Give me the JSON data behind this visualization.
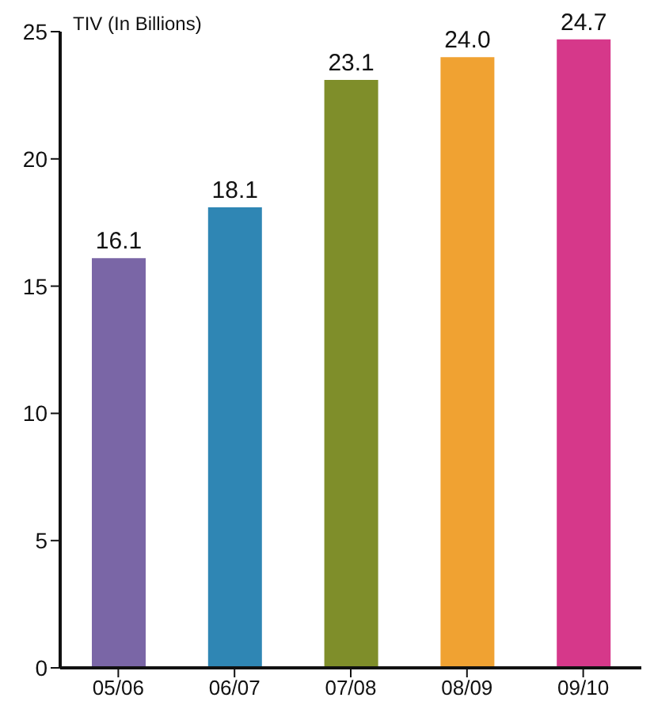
{
  "chart_data": {
    "type": "bar",
    "ylabel": "TIV (In Billions)",
    "categories": [
      "05/06",
      "06/07",
      "07/08",
      "08/09",
      "09/10"
    ],
    "values": [
      16.1,
      18.1,
      23.1,
      24.0,
      24.7
    ],
    "value_labels": [
      "16.1",
      "18.1",
      "23.1",
      "24.0",
      "24.7"
    ],
    "colors": [
      "#7a66a6",
      "#2f86b4",
      "#7f8e2a",
      "#f0a232",
      "#d6388a"
    ],
    "ylim": [
      0,
      25
    ],
    "yticks": [
      0,
      5,
      10,
      15,
      20,
      25
    ],
    "grid": false,
    "legend": false
  }
}
